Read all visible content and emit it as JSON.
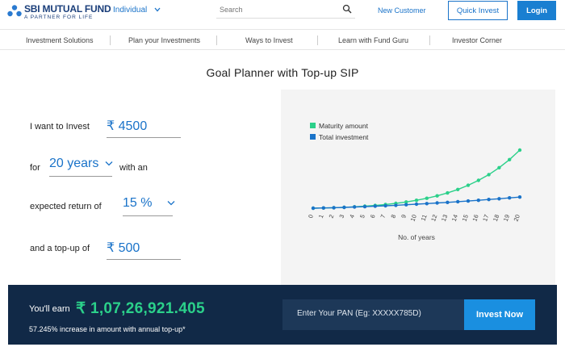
{
  "brand": {
    "title": "SBI MUTUAL FUND",
    "tagline": "A PARTNER FOR LIFE",
    "color": "#1a3e7a"
  },
  "header": {
    "segment": "Individual",
    "search_placeholder": "Search",
    "new_customer": "New Customer",
    "quick_invest": "Quick Invest",
    "login": "Login"
  },
  "nav": {
    "items": [
      {
        "label": "Investment Solutions"
      },
      {
        "label": "Plan your Investments"
      },
      {
        "label": "Ways to Invest"
      },
      {
        "label": "Learn with Fund Guru"
      },
      {
        "label": "Investor Corner"
      }
    ]
  },
  "page": {
    "title": "Goal Planner with Top-up SIP"
  },
  "form": {
    "invest_label": "I want to Invest",
    "invest_value": "₹ 4500",
    "for_label": "for",
    "years_value": "20 years",
    "with_an": "with an",
    "return_label": "expected return of",
    "return_value": "15 %",
    "topup_label": "and a top-up of",
    "topup_value": "₹ 500"
  },
  "chart_data": {
    "type": "line",
    "xlabel": "No. of years",
    "x": [
      0,
      1,
      2,
      3,
      4,
      5,
      6,
      7,
      8,
      9,
      10,
      11,
      12,
      13,
      14,
      15,
      16,
      17,
      18,
      19,
      20
    ],
    "series": [
      {
        "name": "Maturity amount",
        "color": "#2bd08a",
        "values": [
          0,
          0.05,
          0.12,
          0.21,
          0.33,
          0.48,
          0.66,
          0.89,
          1.17,
          1.5,
          1.91,
          2.4,
          2.99,
          3.69,
          4.53,
          5.53,
          6.72,
          8.12,
          9.78,
          11.73,
          14.04
        ]
      },
      {
        "name": "Total investment",
        "color": "#1a73c9",
        "values": [
          0,
          0.05,
          0.12,
          0.2,
          0.29,
          0.38,
          0.48,
          0.59,
          0.71,
          0.84,
          0.97,
          1.11,
          1.26,
          1.41,
          1.57,
          1.74,
          1.92,
          2.1,
          2.29,
          2.49,
          2.7
        ]
      }
    ],
    "legend_position": "top-left",
    "grid": false
  },
  "result": {
    "earn_label": "You'll earn",
    "amount": "₹ 1,07,26,921.405",
    "increase": "57.245% increase in amount with annual top-up*",
    "pan_placeholder": "Enter Your PAN (Eg: XXXXX785D)",
    "invest_now": "Invest Now"
  }
}
